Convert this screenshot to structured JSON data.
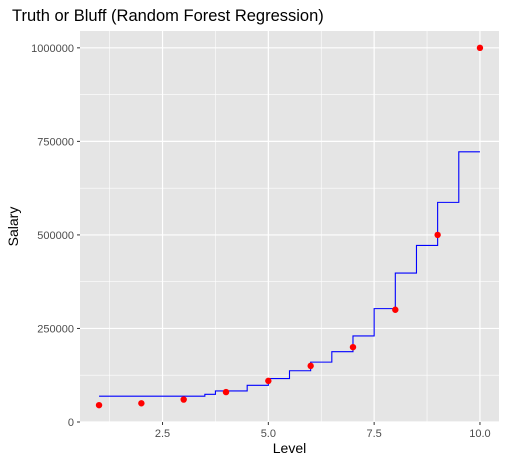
{
  "chart_data": {
    "type": "scatter",
    "title": "Truth or Bluff (Random Forest Regression)",
    "xlabel": "Level",
    "ylabel": "Salary",
    "xlim": [
      0.55,
      10.45
    ],
    "ylim": [
      0,
      1045000
    ],
    "x_ticks": [
      2.5,
      5.0,
      7.5,
      10.0
    ],
    "x_tick_labels": [
      "2.5",
      "5.0",
      "7.5",
      "10.0"
    ],
    "y_ticks": [
      0,
      250000,
      500000,
      750000,
      1000000
    ],
    "y_tick_labels": [
      "0",
      "250000",
      "500000",
      "750000",
      "1000000"
    ],
    "grid": true,
    "legend": "none",
    "series": [
      {
        "type": "scatter",
        "color": "#ff0000",
        "x": [
          1,
          2,
          3,
          4,
          5,
          6,
          7,
          8,
          9,
          10
        ],
        "y": [
          45000,
          50000,
          60000,
          80000,
          110000,
          150000,
          200000,
          300000,
          500000,
          1000000
        ]
      },
      {
        "type": "line",
        "color": "#0000ff",
        "x": [
          1.0,
          3.5,
          3.5,
          3.75,
          3.75,
          4.5,
          4.5,
          5.0,
          5.0,
          5.5,
          5.5,
          6.0,
          6.0,
          6.5,
          6.5,
          7.0,
          7.0,
          7.5,
          7.5,
          8.0,
          8.0,
          8.5,
          8.5,
          9.0,
          9.0,
          9.5,
          9.5,
          10.0
        ],
        "y": [
          69000,
          69000,
          74000,
          74000,
          83000,
          83000,
          98000,
          98000,
          116000,
          116000,
          137000,
          137000,
          160000,
          160000,
          188000,
          188000,
          230000,
          230000,
          303000,
          303000,
          398000,
          398000,
          472000,
          472000,
          587000,
          587000,
          722000,
          722000
        ]
      }
    ]
  },
  "colors": {
    "panel_background": "#e5e5e5",
    "grid_line": "#ffffff",
    "points": "#ff0000",
    "line": "#0000ff"
  }
}
